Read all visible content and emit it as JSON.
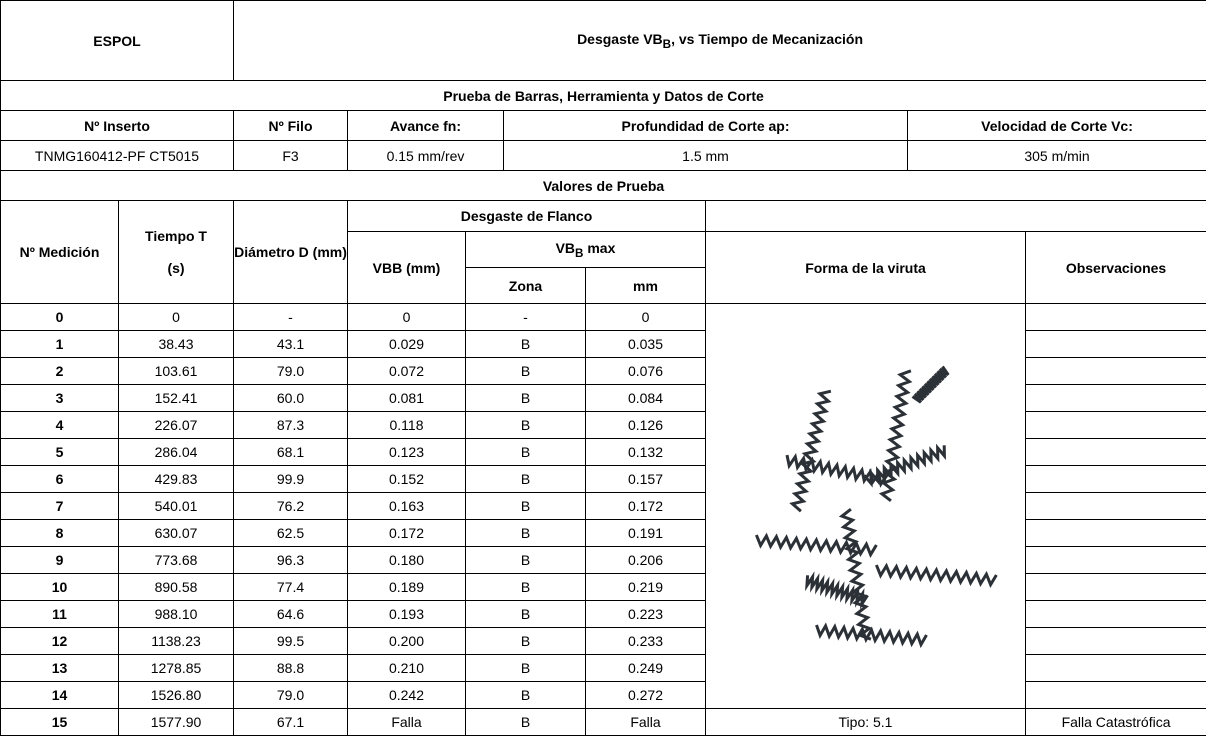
{
  "header": {
    "org": "ESPOL",
    "title_parts": [
      "Desgaste VB",
      "B",
      ", vs Tiempo de Mecanización"
    ]
  },
  "section_test": "Prueba de Barras, Herramienta y Datos de Corte",
  "setup": {
    "labels": [
      "Nº Inserto",
      "Nº Filo",
      "Avance fn:",
      "Profundidad de Corte ap:",
      "Velocidad de Corte Vc:"
    ],
    "values": [
      "TNMG160412-PF CT5015",
      "F3",
      "0.15 mm/rev",
      "1.5 mm",
      "305 m/min"
    ]
  },
  "section_values": "Valores de Prueba",
  "columns": {
    "medicion": "Nº Medición",
    "tiempo": [
      "Tiempo T",
      "(s)"
    ],
    "diametro": "Diámetro D (mm)",
    "flank_wear": "Desgaste de Flanco",
    "vbb": "VBB (mm)",
    "vbb_max_parts": [
      "VB",
      "B",
      " max"
    ],
    "zona": "Zona",
    "mm": "mm",
    "chip_shape": "Forma de la viruta",
    "observations": "Observaciones"
  },
  "table": {
    "rows": [
      [
        "0",
        "0",
        "-",
        "0",
        "-",
        "0"
      ],
      [
        "1",
        "38.43",
        "43.1",
        "0.029",
        "B",
        "0.035"
      ],
      [
        "2",
        "103.61",
        "79.0",
        "0.072",
        "B",
        "0.076"
      ],
      [
        "3",
        "152.41",
        "60.0",
        "0.081",
        "B",
        "0.084"
      ],
      [
        "4",
        "226.07",
        "87.3",
        "0.118",
        "B",
        "0.126"
      ],
      [
        "5",
        "286.04",
        "68.1",
        "0.123",
        "B",
        "0.132"
      ],
      [
        "6",
        "429.83",
        "99.9",
        "0.152",
        "B",
        "0.157"
      ],
      [
        "7",
        "540.01",
        "76.2",
        "0.163",
        "B",
        "0.172"
      ],
      [
        "8",
        "630.07",
        "62.5",
        "0.172",
        "B",
        "0.191"
      ],
      [
        "9",
        "773.68",
        "96.3",
        "0.180",
        "B",
        "0.206"
      ],
      [
        "10",
        "890.58",
        "77.4",
        "0.189",
        "B",
        "0.219"
      ],
      [
        "11",
        "988.10",
        "64.6",
        "0.193",
        "B",
        "0.223"
      ],
      [
        "12",
        "1138.23",
        "99.5",
        "0.200",
        "B",
        "0.233"
      ],
      [
        "13",
        "1278.85",
        "88.8",
        "0.210",
        "B",
        "0.249"
      ],
      [
        "14",
        "1526.80",
        "79.0",
        "0.242",
        "B",
        "0.272"
      ],
      [
        "15",
        "1577.90",
        "67.1",
        "Falla",
        "B",
        "Falla"
      ]
    ],
    "chip_label": "Tipo: 5.1",
    "final_observation": "Falla Catastrófica"
  }
}
